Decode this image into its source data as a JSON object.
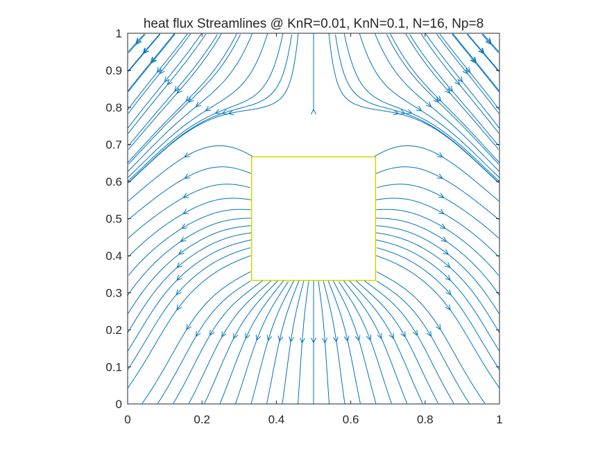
{
  "chart_data": {
    "type": "streamline",
    "title": "heat flux Streamlines @ KnR=0.01, KnN=0.1, N=16, Np=8",
    "xlabel": "",
    "ylabel": "",
    "xlim": [
      0,
      1
    ],
    "ylim": [
      0,
      1
    ],
    "x_ticks": [
      "0",
      "0.2",
      "0.4",
      "0.6",
      "0.8",
      "1"
    ],
    "y_ticks": [
      "0",
      "0.1",
      "0.2",
      "0.3",
      "0.4",
      "0.5",
      "0.6",
      "0.7",
      "0.8",
      "0.9",
      "1"
    ],
    "obstacle": {
      "x": [
        0.3333,
        0.6667
      ],
      "y": [
        0.3333,
        0.6667
      ]
    },
    "grid": false,
    "colors": {
      "streamline": "#0072bd",
      "obstacle_edge": "#d4d400",
      "axis": "#262626"
    }
  }
}
